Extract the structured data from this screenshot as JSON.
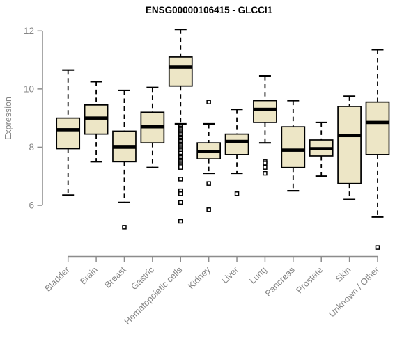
{
  "chart_data": {
    "type": "boxplot",
    "title": "ENSG00000106415 - GLCCI1",
    "ylabel": "Expression",
    "xlabel": "",
    "ylim": [
      6,
      12
    ],
    "yticks": [
      6,
      8,
      10,
      12
    ],
    "grid": false,
    "legend": "none",
    "categories": [
      "Bladder",
      "Brain",
      "Breast",
      "Gastric",
      "Hematopoietic cells",
      "Kidney",
      "Liver",
      "Lung",
      "Pancreas",
      "Prostate",
      "Skin",
      "Unknown / Other"
    ],
    "series": [
      {
        "name": "Bladder",
        "whisker_low": 6.35,
        "q1": 7.95,
        "median": 8.6,
        "q3": 9.0,
        "whisker_high": 10.65,
        "outliers": []
      },
      {
        "name": "Brain",
        "whisker_low": 7.5,
        "q1": 8.45,
        "median": 9.0,
        "q3": 9.45,
        "whisker_high": 10.25,
        "outliers": []
      },
      {
        "name": "Breast",
        "whisker_low": 6.1,
        "q1": 7.5,
        "median": 8.0,
        "q3": 8.55,
        "whisker_high": 9.95,
        "outliers": [
          5.25
        ]
      },
      {
        "name": "Gastric",
        "whisker_low": 7.3,
        "q1": 8.15,
        "median": 8.7,
        "q3": 9.2,
        "whisker_high": 10.05,
        "outliers": []
      },
      {
        "name": "Hematopoietic cells",
        "whisker_low": 8.8,
        "q1": 10.1,
        "median": 10.75,
        "q3": 11.1,
        "whisker_high": 12.05,
        "outliers": [
          8.7,
          8.65,
          8.6,
          8.55,
          8.5,
          8.45,
          8.4,
          8.35,
          8.3,
          8.25,
          8.2,
          8.15,
          8.1,
          8.05,
          8.0,
          7.95,
          7.9,
          7.85,
          7.8,
          7.7,
          7.65,
          7.6,
          7.55,
          7.5,
          7.45,
          7.4,
          7.35,
          7.3,
          6.9,
          6.5,
          6.4,
          6.1,
          5.45
        ]
      },
      {
        "name": "Kidney",
        "whisker_low": 7.1,
        "q1": 7.6,
        "median": 7.85,
        "q3": 8.15,
        "whisker_high": 8.8,
        "outliers": [
          9.55,
          6.75,
          5.85
        ]
      },
      {
        "name": "Liver",
        "whisker_low": 7.1,
        "q1": 7.75,
        "median": 8.2,
        "q3": 8.45,
        "whisker_high": 9.3,
        "outliers": [
          6.4
        ]
      },
      {
        "name": "Lung",
        "whisker_low": 8.15,
        "q1": 8.85,
        "median": 9.3,
        "q3": 9.6,
        "whisker_high": 10.45,
        "outliers": [
          7.5,
          7.45,
          7.3,
          7.1
        ]
      },
      {
        "name": "Pancreas",
        "whisker_low": 6.5,
        "q1": 7.3,
        "median": 7.9,
        "q3": 8.7,
        "whisker_high": 9.6,
        "outliers": []
      },
      {
        "name": "Prostate",
        "whisker_low": 7.0,
        "q1": 7.7,
        "median": 7.95,
        "q3": 8.25,
        "whisker_high": 8.85,
        "outliers": []
      },
      {
        "name": "Skin",
        "whisker_low": 6.2,
        "q1": 6.75,
        "median": 8.4,
        "q3": 9.4,
        "whisker_high": 9.75,
        "outliers": []
      },
      {
        "name": "Unknown / Other",
        "whisker_low": 5.6,
        "q1": 7.75,
        "median": 8.85,
        "q3": 9.55,
        "whisker_high": 11.35,
        "outliers": [
          4.55
        ]
      }
    ]
  },
  "style": {
    "box_fill": "#EDE6C6",
    "box_stroke": "#000000",
    "median_color": "#000000",
    "whisker_color": "#000000",
    "outlier_stroke": "#000000",
    "axis_color": "#8c8c8c",
    "tick_label_color": "#858585",
    "title_color": "#000000",
    "background": "#FFFFFF"
  }
}
